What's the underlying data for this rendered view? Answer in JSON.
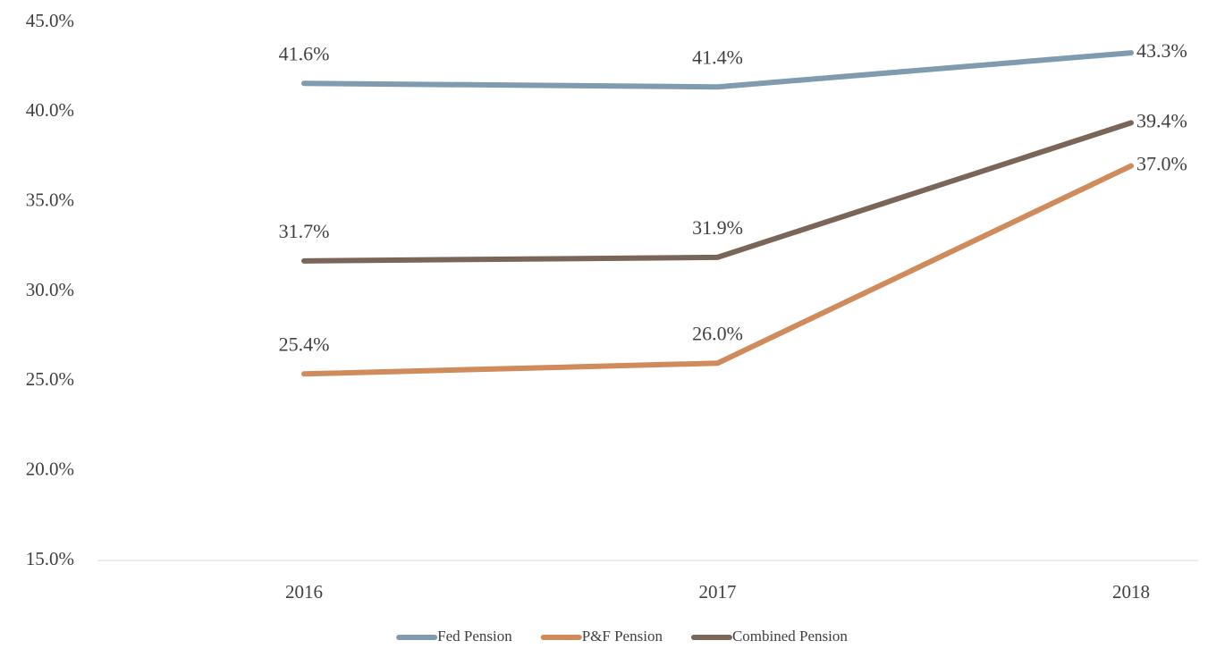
{
  "chart_data": {
    "type": "line",
    "categories": [
      "2016",
      "2017",
      "2018"
    ],
    "series": [
      {
        "name": "Fed Pension",
        "color": "#7f9bb0",
        "values": [
          41.6,
          41.4,
          43.3
        ],
        "value_labels": [
          "41.6%",
          "41.4%",
          "43.3%"
        ]
      },
      {
        "name": "P&F Pension",
        "color": "#cf8b5c",
        "values": [
          25.4,
          26.0,
          37.0
        ],
        "value_labels": [
          "25.4%",
          "26.0%",
          "37.0%"
        ]
      },
      {
        "name": "Combined Pension",
        "color": "#7a6559",
        "values": [
          31.7,
          31.9,
          39.4
        ],
        "value_labels": [
          "31.7%",
          "31.9%",
          "39.4%"
        ]
      }
    ],
    "ylim": [
      15,
      45
    ],
    "yticks": [
      {
        "value": 15,
        "label": "15.0%"
      },
      {
        "value": 20,
        "label": "20.0%"
      },
      {
        "value": 25,
        "label": "25.0%"
      },
      {
        "value": 30,
        "label": "30.0%"
      },
      {
        "value": 35,
        "label": "35.0%"
      },
      {
        "value": 40,
        "label": "40.0%"
      },
      {
        "value": 45,
        "label": "45.0%"
      }
    ],
    "grid": false,
    "legend": "bottom"
  }
}
